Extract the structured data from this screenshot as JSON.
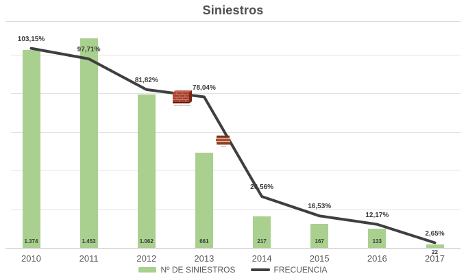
{
  "title": "Siniestros",
  "legend": {
    "bars_label": "Nº DE SINIESTROS",
    "line_label": "FRECUENCIA"
  },
  "colors": {
    "bar_fill": "#A9D08E",
    "line_stroke": "#3F3F3F",
    "label_text": "#3a3a3a",
    "axis_text": "#595959",
    "gridline": "#e2e2e2"
  },
  "chart_data": {
    "type": "bar",
    "subtype": "combo-bar-line",
    "title": "Siniestros",
    "xlabel": "",
    "ylabel": "",
    "categories": [
      "2010",
      "2011",
      "2012",
      "2013",
      "2014",
      "2015",
      "2016",
      "2017"
    ],
    "series": [
      {
        "name": "Nº DE SINIESTROS",
        "type": "bar",
        "values": [
          1374,
          1453,
          1062,
          661,
          217,
          167,
          133,
          22
        ],
        "labels": [
          "1.374",
          "1.453",
          "1.062",
          "661",
          "217",
          "167",
          "133",
          "22"
        ]
      },
      {
        "name": "FRECUENCIA",
        "type": "line",
        "values": [
          103.15,
          97.71,
          81.82,
          78.04,
          26.56,
          16.53,
          12.17,
          2.65
        ],
        "labels": [
          "103,15%",
          "97,71%",
          "81,82%",
          "78,04%",
          "26,56%",
          "16,53%",
          "12,17%",
          "2,65%"
        ]
      }
    ],
    "line_axis_implied_ticks_pct": [
      0,
      20,
      40,
      60,
      80,
      100
    ],
    "grid": true,
    "legend_position": "bottom"
  },
  "annotations": [
    {
      "icon": "brick-wall-icon",
      "anchor_category": "2013",
      "caption": "▪▪▪▪ ▪▪▪▪▪▪▪ ▪▪▪ ▪▪▪▪▪▪"
    },
    {
      "icon": "books-stack-icon",
      "anchor_between": [
        "2013",
        "2014"
      ],
      "caption": "▪▪▪▪▪▪▪"
    }
  ]
}
